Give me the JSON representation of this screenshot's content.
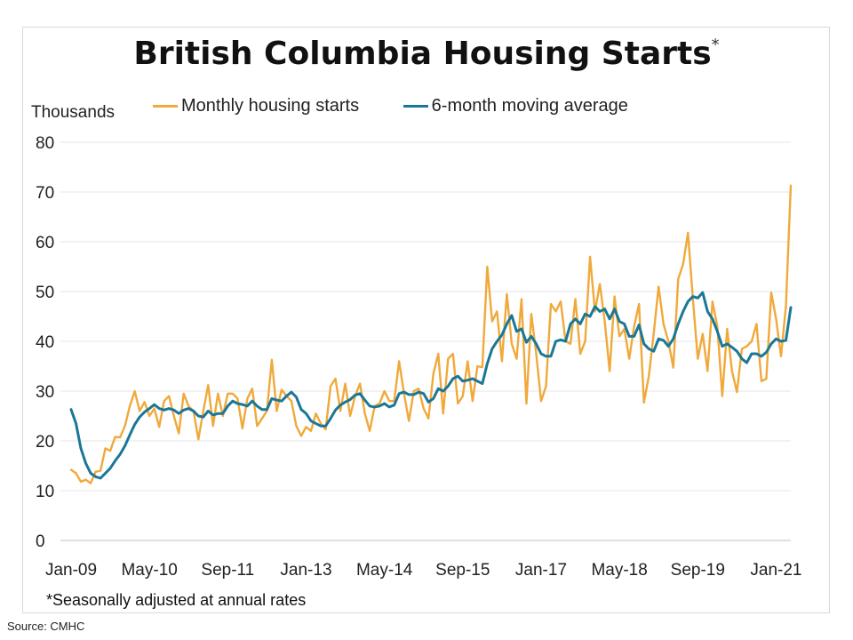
{
  "chart_data": {
    "type": "line",
    "title": "British Columbia Housing Starts",
    "title_mark": "*",
    "ylabel": "Thousands",
    "xlabel": "",
    "ylim": [
      0,
      80
    ],
    "yticks": [
      0,
      10,
      20,
      30,
      40,
      50,
      60,
      70,
      80
    ],
    "x_start": "Jan-09",
    "x_end": "Jan-21",
    "x_tick_labels": [
      "Jan-09",
      "May-10",
      "Sep-11",
      "Jan-13",
      "May-14",
      "Sep-15",
      "Jan-17",
      "May-18",
      "Sep-19",
      "Jan-21"
    ],
    "x_tick_month_index": [
      0,
      16,
      32,
      48,
      64,
      80,
      96,
      112,
      128,
      144
    ],
    "grid": "horizontal",
    "legend_position": "top",
    "series": [
      {
        "name": "Monthly housing starts",
        "color": "#F0A93A",
        "values": [
          14.2,
          13.5,
          11.8,
          12.2,
          11.5,
          13.8,
          14.0,
          18.5,
          18.0,
          20.8,
          20.7,
          23.0,
          27.0,
          30.0,
          26.0,
          27.8,
          25.0,
          26.5,
          22.8,
          28.0,
          29.0,
          25.0,
          21.5,
          29.5,
          27.0,
          26.0,
          20.3,
          26.0,
          31.2,
          23.0,
          29.5,
          25.0,
          29.5,
          29.5,
          28.5,
          22.5,
          28.5,
          30.5,
          23.0,
          24.5,
          26.0,
          36.3,
          26.0,
          30.3,
          29.0,
          28.0,
          23.0,
          21.0,
          22.8,
          22.0,
          25.5,
          23.5,
          22.3,
          31.0,
          32.5,
          26.0,
          31.5,
          25.0,
          29.0,
          31.5,
          25.5,
          22.0,
          27.0,
          27.5,
          30.0,
          28.0,
          28.0,
          36.0,
          29.5,
          24.0,
          30.0,
          30.5,
          26.5,
          24.5,
          33.5,
          37.5,
          25.5,
          36.5,
          37.5,
          27.5,
          29.0,
          36.0,
          28.0,
          35.0,
          34.8,
          55.0,
          44.0,
          46.0,
          36.0,
          49.5,
          39.5,
          36.5,
          48.5,
          27.5,
          45.5,
          37.5,
          28.0,
          31.0,
          47.5,
          46.0,
          48.0,
          40.0,
          39.5,
          48.5,
          37.5,
          40.0,
          57.0,
          46.0,
          51.5,
          44.0,
          34.0,
          49.0,
          41.0,
          42.5,
          36.5,
          43.0,
          47.5,
          27.7,
          33.0,
          41.5,
          51.0,
          43.5,
          40.0,
          34.7,
          52.5,
          55.5,
          61.8,
          48.5,
          36.5,
          41.5,
          34.0,
          48.0,
          43.0,
          29.0,
          42.5,
          34.0,
          29.8,
          38.5,
          39.0,
          40.0,
          43.5,
          32.0,
          32.5,
          49.8,
          44.5,
          37.0,
          47.0,
          71.3
        ]
      },
      {
        "name": "6-month moving average",
        "color": "#1B7797",
        "values": [
          26.3,
          23.5,
          18.5,
          15.5,
          13.5,
          12.8,
          12.5,
          13.5,
          14.5,
          16.0,
          17.3,
          19.0,
          21.2,
          23.3,
          24.8,
          25.8,
          26.5,
          27.3,
          26.5,
          26.2,
          26.5,
          26.2,
          25.5,
          26.2,
          26.5,
          26.0,
          25.0,
          24.8,
          26.0,
          25.2,
          25.5,
          25.5,
          27.0,
          28.0,
          27.5,
          27.3,
          27.0,
          28.0,
          27.0,
          26.3,
          26.3,
          28.5,
          28.2,
          28.0,
          29.0,
          29.8,
          28.8,
          26.3,
          25.5,
          24.0,
          23.5,
          23.0,
          23.0,
          24.5,
          26.2,
          27.2,
          27.8,
          28.3,
          29.2,
          29.5,
          28.2,
          27.0,
          26.8,
          27.0,
          27.5,
          26.8,
          27.2,
          29.5,
          29.8,
          29.3,
          29.3,
          29.8,
          29.5,
          27.8,
          28.5,
          30.5,
          30.0,
          31.0,
          32.5,
          33.0,
          32.0,
          32.2,
          32.5,
          32.0,
          31.5,
          35.5,
          38.5,
          40.0,
          41.3,
          43.5,
          45.2,
          42.0,
          42.5,
          39.8,
          41.0,
          39.5,
          37.5,
          37.0,
          37.0,
          40.0,
          40.3,
          40.0,
          43.5,
          44.5,
          43.5,
          45.5,
          45.0,
          47.0,
          46.0,
          46.5,
          44.5,
          46.5,
          44.0,
          43.5,
          41.0,
          41.0,
          43.3,
          39.5,
          38.5,
          38.0,
          40.5,
          40.2,
          39.0,
          40.5,
          43.5,
          46.0,
          48.0,
          49.0,
          48.7,
          49.8,
          46.0,
          44.5,
          42.0,
          39.0,
          39.5,
          38.8,
          38.0,
          36.5,
          35.7,
          37.5,
          37.5,
          37.0,
          37.8,
          39.5,
          40.5,
          40.0,
          40.2,
          46.8
        ]
      }
    ],
    "footnote": "*Seasonally adjusted at annual rates",
    "source": "Source:  CMHC"
  }
}
